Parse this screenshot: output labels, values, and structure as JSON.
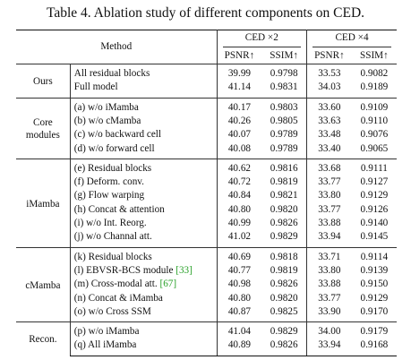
{
  "caption": "Table 4. Ablation study of different components on CED.",
  "header": {
    "method": "Method",
    "group_x2": "CED ×2",
    "group_x4": "CED ×4",
    "metrics": [
      "PSNR↑",
      "SSIM↑",
      "PSNR↑",
      "SSIM↑"
    ]
  },
  "groups": [
    {
      "label_lines": [
        "Ours"
      ],
      "rows": [
        {
          "method": "All residual blocks",
          "values": [
            "39.99",
            "0.9798",
            "33.53",
            "0.9082"
          ]
        },
        {
          "method": "Full model",
          "values": [
            "41.14",
            "0.9831",
            "34.03",
            "0.9189"
          ]
        }
      ]
    },
    {
      "label_lines": [
        "Core",
        "modules"
      ],
      "rows": [
        {
          "method": "(a) w/o iMamba",
          "values": [
            "40.17",
            "0.9803",
            "33.60",
            "0.9109"
          ]
        },
        {
          "method": "(b) w/o cMamba",
          "values": [
            "40.26",
            "0.9805",
            "33.63",
            "0.9110"
          ]
        },
        {
          "method": "(c) w/o backward cell",
          "values": [
            "40.07",
            "0.9789",
            "33.48",
            "0.9076"
          ]
        },
        {
          "method": "(d) w/o forward cell",
          "values": [
            "40.08",
            "0.9789",
            "33.40",
            "0.9065"
          ]
        }
      ]
    },
    {
      "label_lines": [
        "iMamba"
      ],
      "rows": [
        {
          "method": "(e) Residual blocks",
          "values": [
            "40.62",
            "0.9816",
            "33.68",
            "0.9111"
          ]
        },
        {
          "method": "(f) Deform. conv.",
          "values": [
            "40.72",
            "0.9819",
            "33.77",
            "0.9127"
          ]
        },
        {
          "method": "(g) Flow warping",
          "values": [
            "40.84",
            "0.9821",
            "33.80",
            "0.9129"
          ]
        },
        {
          "method": "(h) Concat & attention",
          "values": [
            "40.80",
            "0.9820",
            "33.77",
            "0.9126"
          ]
        },
        {
          "method": "(i) w/o Int. Reorg.",
          "values": [
            "40.99",
            "0.9826",
            "33.88",
            "0.9140"
          ]
        },
        {
          "method": "(j) w/o Channal att.",
          "values": [
            "41.02",
            "0.9829",
            "33.94",
            "0.9145"
          ]
        }
      ]
    },
    {
      "label_lines": [
        "cMamba"
      ],
      "rows": [
        {
          "method": "(k) Residual blocks",
          "values": [
            "40.69",
            "0.9818",
            "33.71",
            "0.9114"
          ]
        },
        {
          "method": "(l) EBVSR-BCS module ",
          "ref": "[33]",
          "values": [
            "40.77",
            "0.9819",
            "33.80",
            "0.9139"
          ]
        },
        {
          "method": "(m) Cross-modal att. ",
          "ref": "[67]",
          "values": [
            "40.98",
            "0.9826",
            "33.88",
            "0.9150"
          ]
        },
        {
          "method": "(n) Concat & iMamba",
          "values": [
            "40.80",
            "0.9820",
            "33.77",
            "0.9129"
          ]
        },
        {
          "method": "(o) w/o Cross SSM",
          "values": [
            "40.87",
            "0.9825",
            "33.90",
            "0.9170"
          ]
        }
      ]
    },
    {
      "label_lines": [
        "Recon."
      ],
      "rows": [
        {
          "method": "(p) w/o iMamba",
          "values": [
            "41.04",
            "0.9829",
            "34.00",
            "0.9179"
          ]
        },
        {
          "method": "(q) All iMamba",
          "values": [
            "40.89",
            "0.9826",
            "33.94",
            "0.9168"
          ]
        }
      ]
    }
  ]
}
